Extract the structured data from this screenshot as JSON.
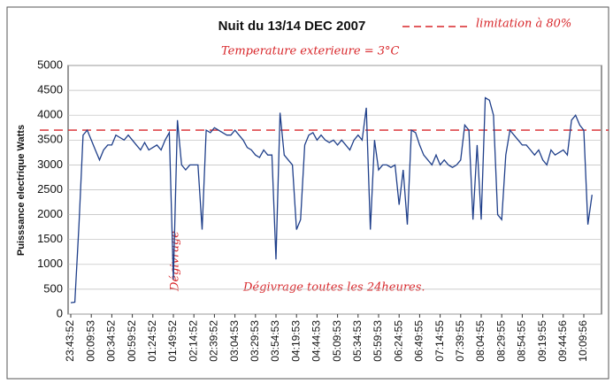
{
  "chart_data": {
    "type": "line",
    "title": "Nuit du 13/14 DEC 2007",
    "y_label": "Puisssance electrique Watts",
    "categories": [
      "23:43:52",
      null,
      null,
      null,
      null,
      "00:09:53",
      null,
      null,
      null,
      null,
      "00:34:52",
      null,
      null,
      null,
      null,
      "00:59:52",
      null,
      null,
      null,
      null,
      "01:24:52",
      null,
      null,
      null,
      null,
      "01:49:52",
      null,
      null,
      null,
      null,
      "02:14:52",
      null,
      null,
      null,
      null,
      "02:39:52",
      null,
      null,
      null,
      null,
      "03:04:53",
      null,
      null,
      null,
      null,
      "03:29:53",
      null,
      null,
      null,
      null,
      "03:54:53",
      null,
      null,
      null,
      null,
      "04:19:53",
      null,
      null,
      null,
      null,
      "04:44:53",
      null,
      null,
      null,
      null,
      "05:09:53",
      null,
      null,
      null,
      null,
      "05:34:53",
      null,
      null,
      null,
      null,
      "05:59:53",
      null,
      null,
      null,
      null,
      "06:24:55",
      null,
      null,
      null,
      null,
      "06:49:55",
      null,
      null,
      null,
      null,
      "07:14:55",
      null,
      null,
      null,
      null,
      "07:39:55",
      null,
      null,
      null,
      null,
      "08:04:55",
      null,
      null,
      null,
      null,
      "08:29:55",
      null,
      null,
      null,
      null,
      "08:54:55",
      null,
      null,
      null,
      null,
      "09:19:55",
      null,
      null,
      null,
      null,
      "09:44:56",
      null,
      null,
      null,
      null,
      "10:09:56",
      null,
      null
    ],
    "series": [
      {
        "name": "Puissance",
        "color": "#1f3f8a",
        "values": [
          230,
          240,
          1800,
          3600,
          3700,
          3500,
          3300,
          3100,
          3300,
          3400,
          3400,
          3600,
          3550,
          3500,
          3600,
          3500,
          3400,
          3300,
          3450,
          3300,
          3350,
          3400,
          3300,
          3500,
          3650,
          700,
          3900,
          3000,
          2900,
          3000,
          3000,
          3000,
          1700,
          3700,
          3650,
          3750,
          3700,
          3650,
          3600,
          3600,
          3700,
          3600,
          3500,
          3350,
          3300,
          3200,
          3150,
          3300,
          3200,
          3200,
          1100,
          4050,
          3200,
          3100,
          3000,
          1700,
          1900,
          3400,
          3600,
          3650,
          3500,
          3600,
          3500,
          3450,
          3500,
          3400,
          3500,
          3400,
          3300,
          3500,
          3600,
          3500,
          4150,
          1700,
          3500,
          2900,
          3000,
          3000,
          2950,
          3000,
          2200,
          2900,
          1800,
          3700,
          3650,
          3400,
          3200,
          3100,
          3000,
          3200,
          3000,
          3100,
          3000,
          2950,
          3000,
          3100,
          3800,
          3700,
          1900,
          3400,
          1900,
          4350,
          4300,
          4000,
          2000,
          1900,
          3200,
          3700,
          3600,
          3500,
          3400,
          3400,
          3300,
          3200,
          3300,
          3100,
          3000,
          3300,
          3200,
          3250,
          3300,
          3200,
          3900,
          4000,
          3800,
          3700,
          1800,
          2400
        ]
      }
    ],
    "ylim": [
      0,
      5000
    ],
    "yticks": [
      0,
      500,
      1000,
      1500,
      2000,
      2500,
      3000,
      3500,
      4000,
      4500,
      5000
    ],
    "grid": true,
    "reference_line": {
      "value": 3700,
      "label": "limitation à 80%",
      "color": "#d8262a"
    },
    "annotations": [
      "Temperature exterieure = 3°C",
      "Dégivrage",
      "Dégivrage toutes les 24heures."
    ]
  }
}
